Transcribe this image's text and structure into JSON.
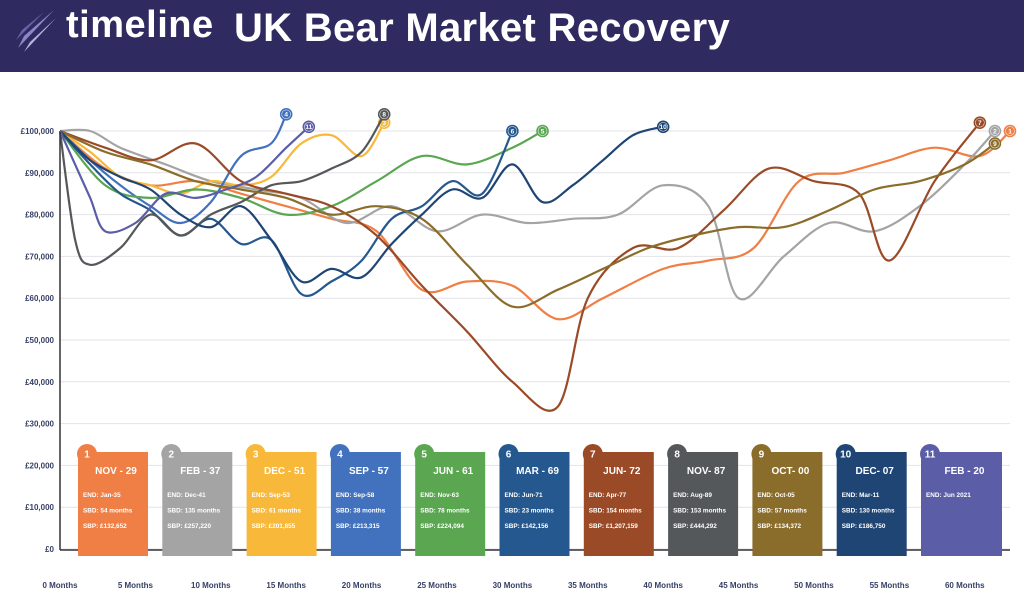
{
  "header": {
    "logo_text": "timeline",
    "title": "UK Bear Market Recovery"
  },
  "colors": {
    "header_bg": "#2f2a5f",
    "grid": "#e3e3e8",
    "axis": "#333333"
  },
  "chart_data": {
    "type": "line",
    "title": "UK Bear Market Recovery",
    "xlabel": "",
    "ylabel": "",
    "xlim": [
      0,
      63
    ],
    "ylim": [
      0,
      100000
    ],
    "grid": true,
    "x_ticks": [
      0,
      5,
      10,
      15,
      20,
      25,
      30,
      35,
      40,
      45,
      50,
      55,
      60
    ],
    "x_tick_labels": [
      "0 Months",
      "5 Months",
      "10 Months",
      "15 Months",
      "20 Months",
      "25 Months",
      "30 Months",
      "35 Months",
      "40 Months",
      "45 Months",
      "50 Months",
      "55 Months",
      "60 Months"
    ],
    "y_ticks": [
      0,
      10000,
      20000,
      30000,
      40000,
      50000,
      60000,
      70000,
      80000,
      90000,
      100000
    ],
    "y_tick_labels": [
      "£0",
      "£10,000",
      "£20,000",
      "£30,000",
      "£40,000",
      "£50,000",
      "£60,000",
      "£70,000",
      "£80,000",
      "£90,000",
      "£100,000"
    ],
    "series": [
      {
        "id": "1",
        "color": "#ef7f45",
        "x": [
          0,
          3,
          6,
          9,
          12,
          15,
          18,
          21,
          24,
          27,
          30,
          33,
          36,
          40,
          43,
          46,
          49,
          52,
          55,
          58,
          61,
          63
        ],
        "y": [
          100000,
          91000,
          87000,
          88000,
          85000,
          82000,
          79000,
          76000,
          62000,
          64000,
          63000,
          55000,
          60000,
          67000,
          69000,
          72000,
          88000,
          90000,
          93000,
          96000,
          94000,
          100000
        ]
      },
      {
        "id": "2",
        "color": "#a4a4a4",
        "x": [
          0,
          2,
          4,
          7,
          10,
          13,
          16,
          19,
          22,
          25,
          28,
          31,
          34,
          37,
          40,
          43,
          45,
          48,
          51,
          54,
          57,
          60,
          62
        ],
        "y": [
          100000,
          100000,
          96000,
          92000,
          88000,
          86000,
          84000,
          78000,
          82000,
          76000,
          80000,
          78000,
          79000,
          80000,
          87000,
          82000,
          60000,
          70000,
          78000,
          76000,
          82000,
          92000,
          100000
        ]
      },
      {
        "id": "3",
        "color": "#f8b83a",
        "x": [
          0,
          2,
          4,
          6,
          8,
          10,
          12,
          14,
          16,
          18,
          20,
          21.5
        ],
        "y": [
          100000,
          95000,
          89000,
          87000,
          85000,
          88000,
          87000,
          89000,
          97000,
          99000,
          94000,
          102000
        ]
      },
      {
        "id": "4",
        "color": "#4272be",
        "x": [
          0,
          2,
          4,
          6,
          8,
          10,
          12,
          14,
          15
        ],
        "y": [
          100000,
          93000,
          87000,
          82000,
          78000,
          83000,
          94000,
          97000,
          104000
        ]
      },
      {
        "id": "5",
        "color": "#5aa651",
        "x": [
          0,
          3,
          6,
          9,
          12,
          15,
          18,
          21,
          24,
          27,
          30,
          32
        ],
        "y": [
          100000,
          87000,
          84000,
          86000,
          84000,
          80000,
          82000,
          88000,
          94000,
          92000,
          96000,
          100000
        ]
      },
      {
        "id": "6",
        "color": "#25588e",
        "x": [
          0,
          2,
          4,
          6,
          8,
          10,
          12,
          14,
          16,
          18,
          20,
          22,
          24,
          26,
          28,
          30
        ],
        "y": [
          100000,
          92000,
          85000,
          81000,
          75000,
          79000,
          73000,
          74000,
          61000,
          64000,
          69000,
          79000,
          82000,
          88000,
          85000,
          100000
        ]
      },
      {
        "id": "7",
        "color": "#9a4a26",
        "x": [
          0,
          3,
          6,
          9,
          12,
          15,
          18,
          21,
          24,
          27,
          30,
          33,
          35,
          38,
          41,
          44,
          47,
          50,
          53,
          55,
          58,
          61
        ],
        "y": [
          100000,
          96000,
          93000,
          97000,
          88000,
          85000,
          82000,
          75000,
          63000,
          52000,
          40000,
          34000,
          60000,
          72000,
          72000,
          81000,
          91000,
          88000,
          85000,
          69000,
          88000,
          102000
        ]
      },
      {
        "id": "8",
        "color": "#55585a",
        "x": [
          0,
          1,
          2,
          4,
          6,
          8,
          10,
          12,
          14,
          16,
          18,
          20,
          21.5
        ],
        "y": [
          100000,
          74000,
          68000,
          72000,
          80000,
          75000,
          80000,
          83000,
          87000,
          88000,
          91000,
          95000,
          104000
        ]
      },
      {
        "id": "9",
        "color": "#8b6d2b",
        "x": [
          0,
          3,
          6,
          9,
          12,
          15,
          18,
          21,
          24,
          27,
          30,
          33,
          36,
          39,
          42,
          45,
          48,
          51,
          54,
          57,
          60,
          62
        ],
        "y": [
          100000,
          95000,
          92000,
          88000,
          86000,
          84000,
          80000,
          82000,
          79000,
          68000,
          58000,
          62000,
          67000,
          72000,
          75000,
          77000,
          77000,
          81000,
          86000,
          88000,
          92000,
          97000
        ]
      },
      {
        "id": "10",
        "color": "#1e4573",
        "x": [
          0,
          2,
          4,
          6,
          8,
          10,
          12,
          14,
          16,
          18,
          20,
          22,
          24,
          26,
          28,
          30,
          32,
          34,
          36,
          38,
          40
        ],
        "y": [
          100000,
          93000,
          89000,
          86000,
          80000,
          77000,
          82000,
          74000,
          64000,
          67000,
          65000,
          73000,
          80000,
          86000,
          84000,
          92000,
          83000,
          87000,
          93000,
          99000,
          101000
        ]
      },
      {
        "id": "11",
        "color": "#5b5ea6",
        "x": [
          0,
          1,
          2,
          3,
          5,
          7,
          9,
          11,
          13,
          15,
          16.5
        ],
        "y": [
          100000,
          92000,
          84000,
          76000,
          78000,
          85000,
          84000,
          86000,
          89000,
          96000,
          101000
        ]
      }
    ],
    "legend": {
      "placement": "bottom",
      "cards": [
        {
          "number": "1",
          "title": "NOV - 29",
          "end": "END: Jan-35",
          "sbd": "SBD: 54 months",
          "sbp": "SBP: £132,652",
          "color": "#ef7f45"
        },
        {
          "number": "2",
          "title": "FEB - 37",
          "end": "END: Dec-41",
          "sbd": "SBD: 135 months",
          "sbp": "SBP: £257,220",
          "color": "#a4a4a4"
        },
        {
          "number": "3",
          "title": "DEC - 51",
          "end": "END: Sep-53",
          "sbd": "SBD: 61 months",
          "sbp": "SBP: £201,855",
          "color": "#f8b83a"
        },
        {
          "number": "4",
          "title": "SEP - 57",
          "end": "END: Sep-58",
          "sbd": "SBD: 38 months",
          "sbp": "SBP: £213,315",
          "color": "#4272be"
        },
        {
          "number": "5",
          "title": "JUN - 61",
          "end": "END: Nov-63",
          "sbd": "SBD: 78 months",
          "sbp": "SBP: £224,094",
          "color": "#5aa651"
        },
        {
          "number": "6",
          "title": "MAR - 69",
          "end": "END: Jun-71",
          "sbd": "SBD: 23 months",
          "sbp": "SBP: £142,156",
          "color": "#25588e"
        },
        {
          "number": "7",
          "title": "JUN- 72",
          "end": "END: Apr-77",
          "sbd": "SBD: 154 months",
          "sbp": "SBP: £1,207,159",
          "color": "#9a4a26"
        },
        {
          "number": "8",
          "title": "NOV- 87",
          "end": "END: Aug-89",
          "sbd": "SBD: 153 months",
          "sbp": "SBP: £444,292",
          "color": "#55585a"
        },
        {
          "number": "9",
          "title": "OCT- 00",
          "end": "END: Oct-05",
          "sbd": "SBD: 57 months",
          "sbp": "SBP: £134,372",
          "color": "#8b6d2b"
        },
        {
          "number": "10",
          "title": "DEC- 07",
          "end": "END: Mar-11",
          "sbd": "SBD: 130 months",
          "sbp": "SBP: £186,750",
          "color": "#1e4573"
        },
        {
          "number": "11",
          "title": "FEB - 20",
          "end": "END: Jun 2021",
          "color": "#5b5ea6"
        }
      ]
    }
  }
}
